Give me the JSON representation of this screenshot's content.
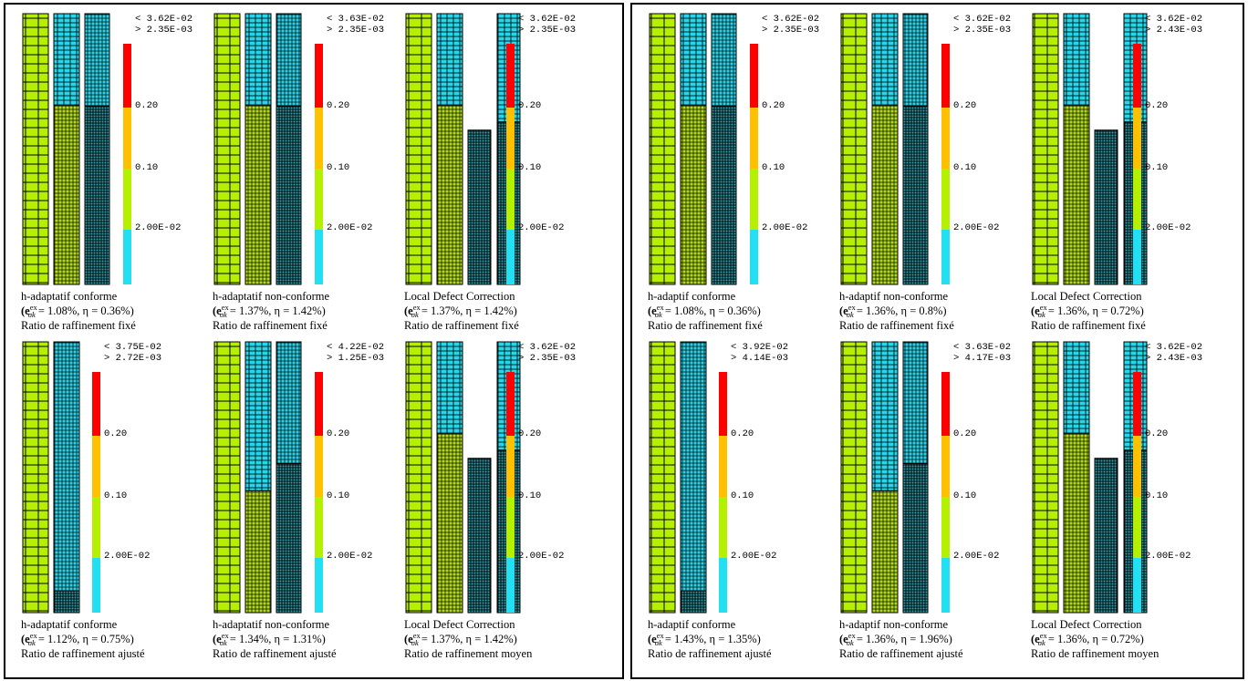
{
  "error_symbol": {
    "open": "(e",
    "sup": "ex",
    "sub": "σk"
  },
  "colorbar_labels": [
    "0.20",
    "0.10",
    "2.00E-02"
  ],
  "panels": [
    {
      "cells": [
        {
          "max": "< 3.62E-02",
          "min": "> 2.35E-03",
          "method": "h-adaptatif conforme",
          "rest": " = 1.08%, η = 0.36%)",
          "ratio": "Ratio de raffinement fixé"
        },
        {
          "max": "< 3.63E-02",
          "min": "> 2.35E-03",
          "method": "h-adaptatif non-conforme",
          "rest": " = 1.37%, η = 1.42%)",
          "ratio": "Ratio de raffinement fixé"
        },
        {
          "max": "< 3.62E-02",
          "min": "> 2.35E-03",
          "method": "Local Defect Correction",
          "rest": " = 1.37%, η = 1.42%)",
          "ratio": "Ratio de raffinement fixé"
        },
        {
          "max": "< 3.75E-02",
          "min": "> 2.72E-03",
          "method": "h-adaptatif conforme",
          "rest": " = 1.12%, η = 0.75%)",
          "ratio": "Ratio de raffinement ajusté"
        },
        {
          "max": "< 4.22E-02",
          "min": "> 1.25E-03",
          "method": "h-adaptatif non-conforme",
          "rest": " = 1.34%, η = 1.31%)",
          "ratio": "Ratio de raffinement ajusté"
        },
        {
          "max": "< 3.62E-02",
          "min": "> 2.35E-03",
          "method": "Local Defect Correction",
          "rest": " = 1.37%, η = 1.42%)",
          "ratio": "Ratio de raffinement moyen"
        }
      ]
    },
    {
      "cells": [
        {
          "max": "< 3.62E-02",
          "min": "> 2.35E-03",
          "method": "h-adaptif conforme",
          "rest": " = 1.08%, η = 0.36%)",
          "ratio": "Ratio de raffinement fixé"
        },
        {
          "max": "< 3.62E-02",
          "min": "> 2.35E-03",
          "method": "h-adaptif non-conforme",
          "rest": " = 1.36%, η = 0.8%)",
          "ratio": "Ratio de raffinement fixé"
        },
        {
          "max": "< 3.62E-02",
          "min": "> 2.43E-03",
          "method": "Local Defect Correction",
          "rest": " = 1.36%, η = 0.72%)",
          "ratio": "Ratio de raffinement fixé"
        },
        {
          "max": "< 3.92E-02",
          "min": "> 4.14E-03",
          "method": "h-adaptif conforme",
          "rest": " = 1.43%, η = 1.35%)",
          "ratio": "Ratio de raffinement ajusté"
        },
        {
          "max": "< 3.63E-02",
          "min": "> 4.17E-03",
          "method": "h-adaptif non-conforme",
          "rest": " = 1.36%, η = 1.96%)",
          "ratio": "Ratio de raffinement ajusté"
        },
        {
          "max": "< 3.62E-02",
          "min": "> 2.43E-03",
          "method": "Local Defect Correction",
          "rest": " = 1.36%, η = 0.72%)",
          "ratio": "Ratio de raffinement moyen"
        }
      ]
    }
  ]
}
